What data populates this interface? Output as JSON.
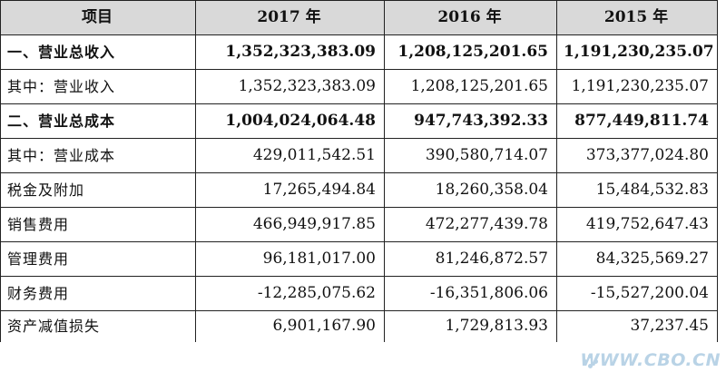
{
  "header": {
    "item": "项目",
    "y2017": "2017 年",
    "y2016": "2016 年",
    "y2015": "2015 年"
  },
  "rows": [
    {
      "label": "一、营业总收入",
      "bold": true,
      "v2017": "1,352,323,383.09",
      "v2016": "1,208,125,201.65",
      "v2015": "1,191,230,235.07"
    },
    {
      "label": "其中：营业收入",
      "bold": false,
      "v2017": "1,352,323,383.09",
      "v2016": "1,208,125,201.65",
      "v2015": "1,191,230,235.07"
    },
    {
      "label": "二、营业总成本",
      "bold": true,
      "v2017": "1,004,024,064.48",
      "v2016": "947,743,392.33",
      "v2015": "877,449,811.74"
    },
    {
      "label": "其中：营业成本",
      "bold": false,
      "v2017": "429,011,542.51",
      "v2016": "390,580,714.07",
      "v2015": "373,377,024.80"
    },
    {
      "label": "税金及附加",
      "bold": false,
      "v2017": "17,265,494.84",
      "v2016": "18,260,358.04",
      "v2015": "15,484,532.83"
    },
    {
      "label": "销售费用",
      "bold": false,
      "v2017": "466,949,917.85",
      "v2016": "472,277,439.78",
      "v2015": "419,752,647.43"
    },
    {
      "label": "管理费用",
      "bold": false,
      "v2017": "96,181,017.00",
      "v2016": "81,246,872.57",
      "v2015": "84,325,569.27"
    },
    {
      "label": "财务费用",
      "bold": false,
      "v2017": "-12,285,075.62",
      "v2016": "-16,351,806.06",
      "v2015": "-15,527,200.04"
    },
    {
      "label": "资产减值损失",
      "bold": false,
      "v2017": "6,901,167.90",
      "v2016": "1,729,813.93",
      "v2015": "37,237.45"
    }
  ],
  "watermark": {
    "text": "WWW.CBO.CN",
    "color": "#b9d3e6"
  },
  "colors": {
    "header_bg": "#d9d9d9",
    "border": "#222222"
  }
}
